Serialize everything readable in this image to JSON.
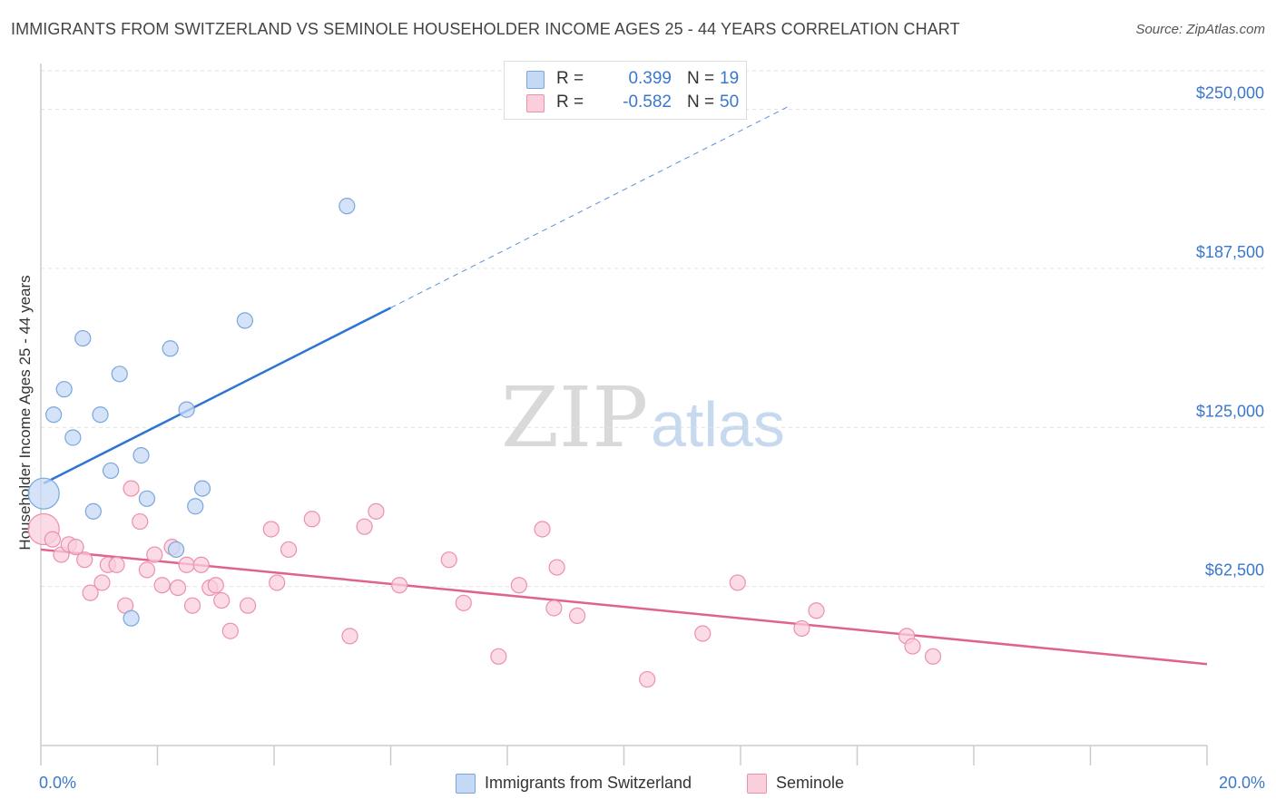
{
  "title": "IMMIGRANTS FROM SWITZERLAND VS SEMINOLE HOUSEHOLDER INCOME AGES 25 - 44 YEARS CORRELATION CHART",
  "source": "Source: ZipAtlas.com",
  "watermark": {
    "zip": "ZIP",
    "atlas": "atlas"
  },
  "legend": {
    "r_label": "R =",
    "n_label": "N =",
    "rows": [
      {
        "r": "0.399",
        "n": "19"
      },
      {
        "r": "-0.582",
        "n": "50"
      }
    ]
  },
  "colors": {
    "blue_fill": "#c5d9f5",
    "blue_stroke": "#7aa6dd",
    "blue_line": "#2d74d4",
    "pink_fill": "#f9cfdc",
    "pink_stroke": "#ec90ad",
    "pink_line": "#e0628f",
    "value_text": "#3a78cc",
    "grid": "#e2e2e2",
    "axis": "#cccccc"
  },
  "chart_data": {
    "type": "scatter",
    "title": "IMMIGRANTS FROM SWITZERLAND VS SEMINOLE HOUSEHOLDER INCOME AGES 25 - 44 YEARS CORRELATION CHART",
    "xlabel": "",
    "ylabel": "Householder Income Ages 25 - 44 years",
    "xlim": [
      0,
      20
    ],
    "ylim": [
      0,
      268000
    ],
    "x_ticks": [
      "0.0%",
      "20.0%"
    ],
    "y_ticks": [
      {
        "value": 62500,
        "label": "$62,500"
      },
      {
        "value": 125000,
        "label": "$125,000"
      },
      {
        "value": 187500,
        "label": "$187,500"
      },
      {
        "value": 250000,
        "label": "$250,000"
      }
    ],
    "grid": true,
    "legend_position": "bottom",
    "series": [
      {
        "name": "Immigrants from Switzerland",
        "color": "#7aa6dd",
        "r": 0.399,
        "n": 19,
        "points": [
          {
            "x": 0.05,
            "y": 99000,
            "big": true
          },
          {
            "x": 0.22,
            "y": 130000
          },
          {
            "x": 0.4,
            "y": 140000
          },
          {
            "x": 0.55,
            "y": 121000
          },
          {
            "x": 0.72,
            "y": 160000
          },
          {
            "x": 0.9,
            "y": 92000
          },
          {
            "x": 1.02,
            "y": 130000
          },
          {
            "x": 1.2,
            "y": 108000
          },
          {
            "x": 1.35,
            "y": 146000
          },
          {
            "x": 1.55,
            "y": 50000
          },
          {
            "x": 1.72,
            "y": 114000
          },
          {
            "x": 1.82,
            "y": 97000
          },
          {
            "x": 2.22,
            "y": 156000
          },
          {
            "x": 2.32,
            "y": 77000
          },
          {
            "x": 2.5,
            "y": 132000
          },
          {
            "x": 2.65,
            "y": 94000
          },
          {
            "x": 2.77,
            "y": 101000
          },
          {
            "x": 3.5,
            "y": 167000
          },
          {
            "x": 5.25,
            "y": 212000
          }
        ],
        "trend": {
          "x0": 0.05,
          "y0": 103000,
          "x1": 6.0,
          "y1": 172000,
          "dash_to_x": 12.8
        }
      },
      {
        "name": "Seminole",
        "color": "#ec90ad",
        "r": -0.582,
        "n": 50,
        "points": [
          {
            "x": 0.05,
            "y": 85000,
            "big": true
          },
          {
            "x": 0.2,
            "y": 81000
          },
          {
            "x": 0.35,
            "y": 75000
          },
          {
            "x": 0.48,
            "y": 79000
          },
          {
            "x": 0.6,
            "y": 78000
          },
          {
            "x": 0.75,
            "y": 73000
          },
          {
            "x": 0.85,
            "y": 60000
          },
          {
            "x": 1.05,
            "y": 64000
          },
          {
            "x": 1.15,
            "y": 71000
          },
          {
            "x": 1.3,
            "y": 71000
          },
          {
            "x": 1.45,
            "y": 55000
          },
          {
            "x": 1.55,
            "y": 101000
          },
          {
            "x": 1.7,
            "y": 88000
          },
          {
            "x": 1.82,
            "y": 69000
          },
          {
            "x": 1.95,
            "y": 75000
          },
          {
            "x": 2.08,
            "y": 63000
          },
          {
            "x": 2.25,
            "y": 78000
          },
          {
            "x": 2.35,
            "y": 62000
          },
          {
            "x": 2.5,
            "y": 71000
          },
          {
            "x": 2.6,
            "y": 55000
          },
          {
            "x": 2.75,
            "y": 71000
          },
          {
            "x": 2.9,
            "y": 62000
          },
          {
            "x": 3.0,
            "y": 63000
          },
          {
            "x": 3.1,
            "y": 57000
          },
          {
            "x": 3.25,
            "y": 45000
          },
          {
            "x": 3.55,
            "y": 55000
          },
          {
            "x": 3.95,
            "y": 85000
          },
          {
            "x": 4.05,
            "y": 64000
          },
          {
            "x": 4.25,
            "y": 77000
          },
          {
            "x": 4.65,
            "y": 89000
          },
          {
            "x": 5.3,
            "y": 43000
          },
          {
            "x": 5.55,
            "y": 86000
          },
          {
            "x": 5.75,
            "y": 92000
          },
          {
            "x": 6.15,
            "y": 63000
          },
          {
            "x": 7.0,
            "y": 73000
          },
          {
            "x": 7.25,
            "y": 56000
          },
          {
            "x": 7.85,
            "y": 35000
          },
          {
            "x": 8.2,
            "y": 63000
          },
          {
            "x": 8.6,
            "y": 85000
          },
          {
            "x": 8.8,
            "y": 54000
          },
          {
            "x": 8.85,
            "y": 70000
          },
          {
            "x": 9.2,
            "y": 51000
          },
          {
            "x": 10.4,
            "y": 26000
          },
          {
            "x": 11.35,
            "y": 44000
          },
          {
            "x": 11.95,
            "y": 64000
          },
          {
            "x": 13.05,
            "y": 46000
          },
          {
            "x": 13.3,
            "y": 53000
          },
          {
            "x": 14.85,
            "y": 43000
          },
          {
            "x": 14.95,
            "y": 39000
          },
          {
            "x": 15.3,
            "y": 35000
          }
        ],
        "trend": {
          "x0": 0.0,
          "y0": 77000,
          "x1": 20.0,
          "y1": 32000
        }
      }
    ]
  }
}
